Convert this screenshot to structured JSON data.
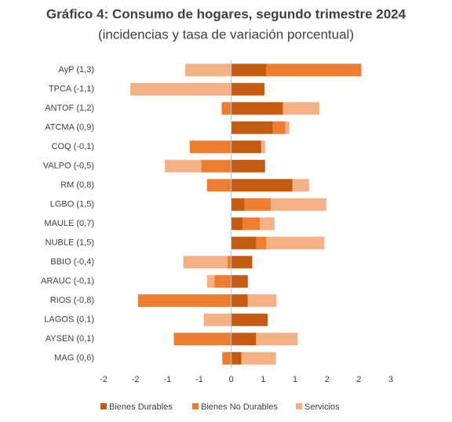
{
  "chart_data": {
    "type": "diverging-stacked-bar",
    "title": "Gráfico 4: Consumo de hogares, segundo trimestre 2024",
    "subtitle": "(incidencias y tasa de variación porcentual)",
    "categories": [
      "AyP (1,3)",
      "TPCA (-1,1)",
      "ANTOF (1,2)",
      "ATCMA (0,9)",
      "COQ (-0,1)",
      "VALPO (-0,5)",
      "RM (0,8)",
      "LGBO (1,5)",
      "MAULE (0,7)",
      "NUBLE (1,5)",
      "BBIO (-0,4)",
      "ARAUC (-0,1)",
      "RIOS (-0,8)",
      "LAGOS (0,1)",
      "AYSEN (0,1)",
      "MAG (0,6)"
    ],
    "series": [
      {
        "name": "Bienes Durables",
        "color": "#c55a11",
        "values": [
          0.55,
          0.52,
          0.81,
          0.65,
          0.47,
          0.53,
          0.96,
          0.21,
          0.18,
          0.39,
          0.33,
          0.26,
          0.26,
          0.57,
          0.39,
          0.16
        ]
      },
      {
        "name": "Bienes No Durables",
        "color": "#ed7d31",
        "values": [
          1.49,
          0,
          -0.15,
          0.2,
          -0.65,
          -0.47,
          -0.38,
          0.41,
          0.27,
          0.16,
          -0.06,
          -0.26,
          -1.46,
          0,
          -0.9,
          -0.14
        ]
      },
      {
        "name": "Servicios",
        "color": "#f4b183",
        "values": [
          -0.72,
          -1.58,
          0.57,
          0.06,
          0.06,
          -0.57,
          0.26,
          0.87,
          0.23,
          0.91,
          -0.69,
          -0.12,
          0.45,
          -0.43,
          0.65,
          0.54
        ]
      }
    ],
    "xlim": [
      -2,
      2.5
    ],
    "xticks": [
      -2,
      {
        "value": -1.5,
        "label": "-2"
      },
      -1,
      {
        "value": -0.5,
        "label": "-1"
      },
      0,
      {
        "value": 0.5,
        "label": "1"
      },
      1,
      {
        "value": 1.5,
        "label": "2"
      },
      2,
      {
        "value": 2.5,
        "label": "3"
      }
    ],
    "grid": false
  }
}
